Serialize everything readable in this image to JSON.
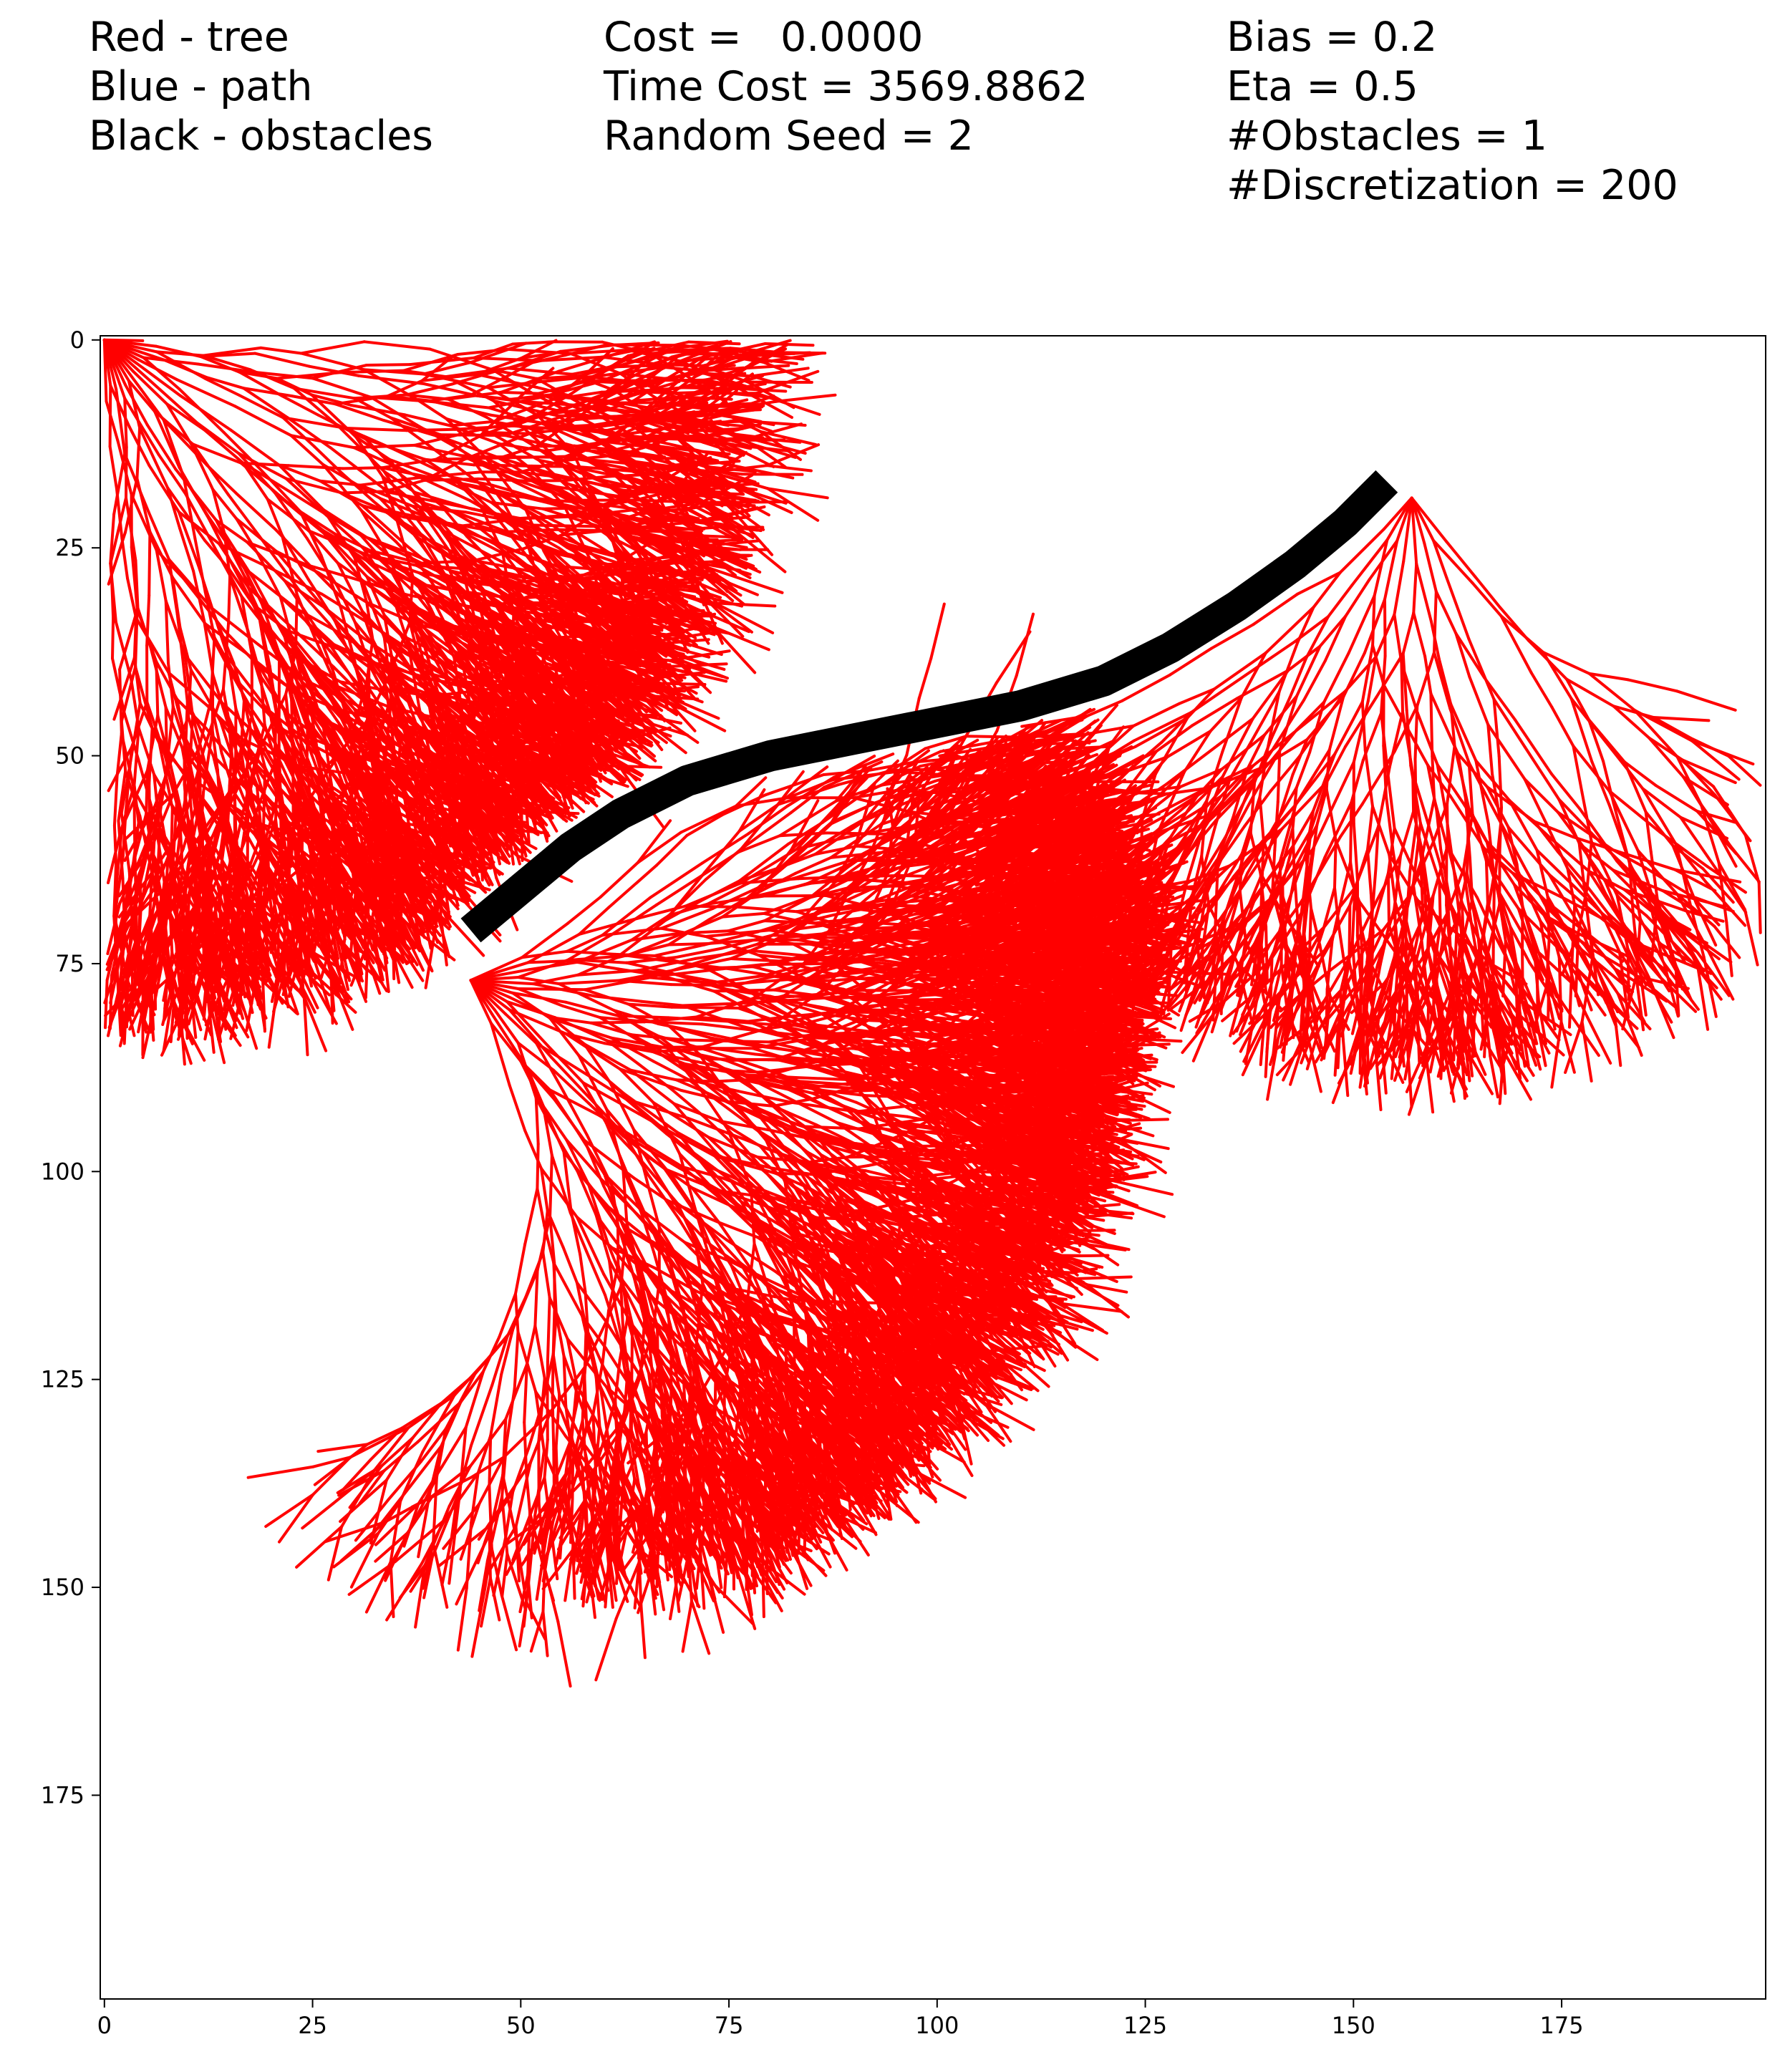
{
  "header": {
    "legend": [
      "Red - tree",
      "Blue - path",
      "Black - obstacles"
    ],
    "stats": [
      "Cost =   0.0000",
      "Time Cost = 3569.8862",
      "Random Seed = 2"
    ],
    "params": [
      "Bias = 0.2",
      "Eta = 0.5",
      "#Obstacles = 1",
      "#Discretization = 200"
    ]
  },
  "colors": {
    "tree": "#ff0000",
    "path": "#0000ff",
    "obstacle": "#000000",
    "axes": "#000000",
    "background": "#ffffff"
  },
  "chart_data": {
    "type": "line",
    "title": "",
    "xlabel": "",
    "ylabel": "",
    "xlim": [
      -0.5,
      199.5
    ],
    "ylim": [
      199.5,
      -0.5
    ],
    "y_inverted": true,
    "grid": false,
    "xticks": [
      0,
      25,
      50,
      75,
      100,
      125,
      150,
      175
    ],
    "yticks": [
      0,
      25,
      50,
      75,
      100,
      125,
      150,
      175
    ],
    "series": [
      {
        "name": "tree",
        "color": "#ff0000",
        "roots": [
          [
            0,
            0
          ],
          [
            44,
            77
          ],
          [
            157,
            19
          ]
        ],
        "path_found": false
      },
      {
        "name": "obstacles",
        "color": "#000000",
        "centerline": [
          [
            44,
            71
          ],
          [
            50,
            66
          ],
          [
            56,
            61
          ],
          [
            62,
            57
          ],
          [
            70,
            53
          ],
          [
            80,
            50
          ],
          [
            90,
            48
          ],
          [
            100,
            46
          ],
          [
            110,
            44
          ],
          [
            120,
            41
          ],
          [
            128,
            37
          ],
          [
            136,
            32
          ],
          [
            143,
            27
          ],
          [
            149,
            22
          ],
          [
            154,
            17
          ]
        ],
        "thickness": 3
      }
    ]
  }
}
